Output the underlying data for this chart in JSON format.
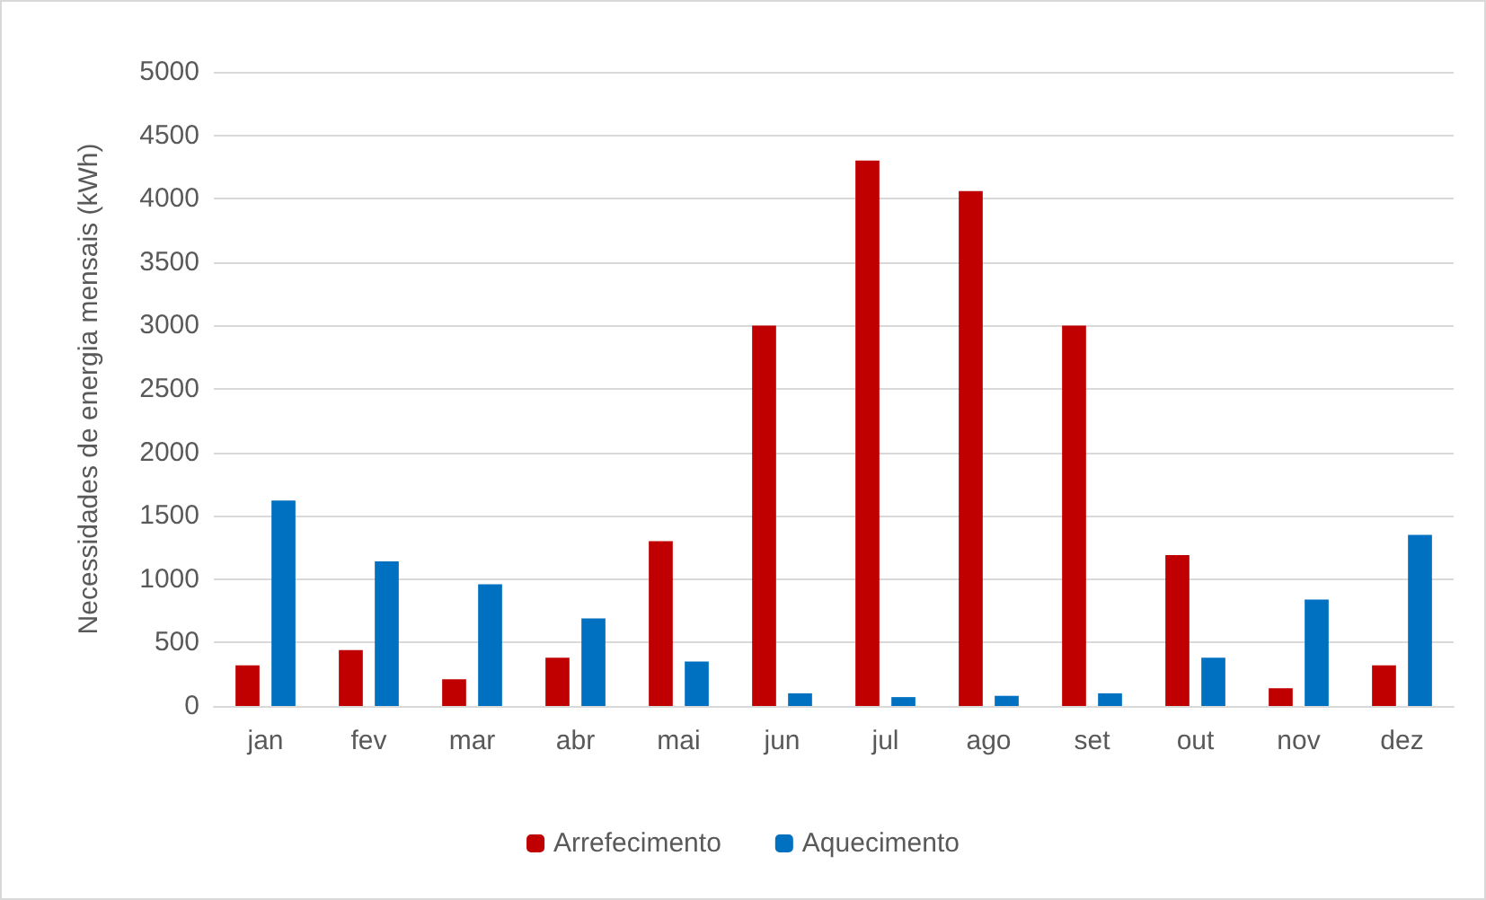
{
  "chart_data": {
    "type": "bar",
    "ylabel": "Necessidades de energia mensais (kWh)",
    "categories": [
      "jan",
      "fev",
      "mar",
      "abr",
      "mai",
      "jun",
      "jul",
      "ago",
      "set",
      "out",
      "nov",
      "dez"
    ],
    "series": [
      {
        "name": "Arrefecimento",
        "color": "#c00000",
        "values": [
          320,
          440,
          210,
          380,
          1300,
          3000,
          4300,
          4060,
          3000,
          1190,
          140,
          320
        ]
      },
      {
        "name": "Aquecimento",
        "color": "#0070c0",
        "values": [
          1620,
          1140,
          960,
          690,
          350,
          100,
          70,
          80,
          100,
          380,
          840,
          1350
        ]
      }
    ],
    "ylim": [
      0,
      5000
    ],
    "yticks": [
      0,
      500,
      1000,
      1500,
      2000,
      2500,
      3000,
      3500,
      4000,
      4500,
      5000
    ],
    "grid": "y",
    "legend": "bottom"
  }
}
